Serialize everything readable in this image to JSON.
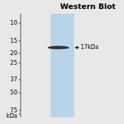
{
  "chart_data": {
    "type": "blot",
    "title": "Western Blot",
    "log": "y",
    "ylim": [
      88,
      8
    ],
    "yticks": [
      {
        "value": 82,
        "label": "kDa"
      },
      75,
      50,
      37,
      25,
      20,
      15,
      10
    ],
    "values": [
      17.5
    ],
    "color": "#3a3030",
    "annotations": [
      {
        "text": "17kDa",
        "y": 17.5
      }
    ],
    "tick_labels": "y"
  }
}
